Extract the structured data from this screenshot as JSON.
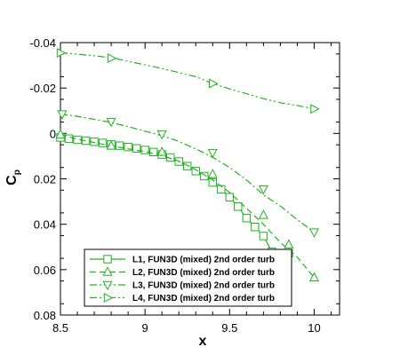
{
  "chart_data": {
    "type": "line",
    "xlabel": "x",
    "ylabel": "C",
    "ylabel_sub": "p",
    "xlim": [
      8.5,
      10.15
    ],
    "ylim": [
      0.08,
      -0.04
    ],
    "y_inverted": true,
    "xticks": [
      8.5,
      9,
      9.5,
      10
    ],
    "xtick_labels": [
      "8.5",
      "9",
      "9.5",
      "10"
    ],
    "yticks": [
      -0.04,
      -0.02,
      0,
      0.02,
      0.04,
      0.06,
      0.08
    ],
    "ytick_labels": [
      "-0.04",
      "-0.02",
      "0",
      "0.02",
      "0.04",
      "0.06",
      "0.08"
    ],
    "grid": false,
    "legend_position": "lower-left",
    "color": "#1eb31e",
    "series": [
      {
        "name": "L1, FUN3D (mixed) 2nd order turb",
        "marker": "square",
        "dash": "solid",
        "points": [
          [
            8.5,
            0.0018
          ],
          [
            8.55,
            0.0023
          ],
          [
            8.6,
            0.0028
          ],
          [
            8.65,
            0.0032
          ],
          [
            8.7,
            0.0037
          ],
          [
            8.75,
            0.0042
          ],
          [
            8.8,
            0.0048
          ],
          [
            8.85,
            0.0054
          ],
          [
            8.9,
            0.006
          ],
          [
            8.95,
            0.0066
          ],
          [
            9.0,
            0.0073
          ],
          [
            9.05,
            0.0082
          ],
          [
            9.1,
            0.0093
          ],
          [
            9.15,
            0.0106
          ],
          [
            9.2,
            0.0124
          ],
          [
            9.25,
            0.0144
          ],
          [
            9.3,
            0.0166
          ],
          [
            9.35,
            0.0188
          ],
          [
            9.4,
            0.0216
          ],
          [
            9.45,
            0.0246
          ],
          [
            9.5,
            0.0281
          ],
          [
            9.55,
            0.0322
          ],
          [
            9.6,
            0.0373
          ],
          [
            9.65,
            0.0412
          ],
          [
            9.7,
            0.0452
          ],
          [
            9.75,
            0.0521
          ],
          [
            9.8,
            0.0535
          ],
          [
            9.85,
            0.0528
          ]
        ],
        "markers": [
          [
            8.5,
            0.0018
          ],
          [
            8.55,
            0.0023
          ],
          [
            8.6,
            0.0028
          ],
          [
            8.65,
            0.0032
          ],
          [
            8.7,
            0.0037
          ],
          [
            8.75,
            0.0042
          ],
          [
            8.8,
            0.0048
          ],
          [
            8.85,
            0.0054
          ],
          [
            8.9,
            0.006
          ],
          [
            8.95,
            0.0066
          ],
          [
            9.0,
            0.0073
          ],
          [
            9.05,
            0.0082
          ],
          [
            9.1,
            0.0093
          ],
          [
            9.15,
            0.0106
          ],
          [
            9.2,
            0.0124
          ],
          [
            9.25,
            0.0144
          ],
          [
            9.3,
            0.0166
          ],
          [
            9.35,
            0.0188
          ],
          [
            9.4,
            0.0216
          ],
          [
            9.45,
            0.0246
          ],
          [
            9.5,
            0.0281
          ],
          [
            9.55,
            0.0322
          ],
          [
            9.6,
            0.0373
          ],
          [
            9.65,
            0.0412
          ],
          [
            9.7,
            0.0452
          ],
          [
            9.75,
            0.0521
          ],
          [
            9.8,
            0.0535
          ],
          [
            9.85,
            0.0528
          ]
        ]
      },
      {
        "name": "L2, FUN3D (mixed) 2nd order turb",
        "marker": "triangle-up",
        "dash": "dashed",
        "points": [
          [
            8.5,
            0.0005
          ],
          [
            8.6,
            0.0025
          ],
          [
            8.7,
            0.004
          ],
          [
            8.8,
            0.0055
          ],
          [
            8.9,
            0.0068
          ],
          [
            9.0,
            0.008
          ],
          [
            9.1,
            0.0098
          ],
          [
            9.2,
            0.0122
          ],
          [
            9.3,
            0.016
          ],
          [
            9.4,
            0.0205
          ],
          [
            9.5,
            0.026
          ],
          [
            9.6,
            0.033
          ],
          [
            9.7,
            0.04
          ],
          [
            9.8,
            0.048
          ],
          [
            9.9,
            0.0545
          ],
          [
            10.0,
            0.0635
          ]
        ],
        "markers": [
          [
            8.5,
            0.0005
          ],
          [
            8.8,
            0.0055
          ],
          [
            9.1,
            0.0082
          ],
          [
            9.4,
            0.018
          ],
          [
            9.7,
            0.036
          ],
          [
            9.85,
            0.049
          ],
          [
            10.0,
            0.0635
          ]
        ]
      },
      {
        "name": "L3, FUN3D (mixed) 2nd order turb",
        "marker": "triangle-down",
        "dash": "dashdot",
        "points": [
          [
            8.5,
            -0.0085
          ],
          [
            8.6,
            -0.0075
          ],
          [
            8.7,
            -0.0062
          ],
          [
            8.8,
            -0.0048
          ],
          [
            8.9,
            -0.003
          ],
          [
            9.0,
            -0.001
          ],
          [
            9.1,
            0.001
          ],
          [
            9.2,
            0.0035
          ],
          [
            9.3,
            0.0068
          ],
          [
            9.4,
            0.0105
          ],
          [
            9.5,
            0.015
          ],
          [
            9.6,
            0.0205
          ],
          [
            9.7,
            0.027
          ],
          [
            9.8,
            0.032
          ],
          [
            9.9,
            0.038
          ],
          [
            10.0,
            0.0435
          ]
        ],
        "markers": [
          [
            8.51,
            -0.0085
          ],
          [
            8.8,
            -0.0052
          ],
          [
            9.1,
            0.0003
          ],
          [
            9.4,
            0.0085
          ],
          [
            9.7,
            0.0245
          ],
          [
            10.0,
            0.0435
          ]
        ]
      },
      {
        "name": "L4, FUN3D (mixed) 2nd order turb",
        "marker": "triangle-right",
        "dash": "dashdotdot",
        "points": [
          [
            8.5,
            -0.0355
          ],
          [
            8.6,
            -0.0349
          ],
          [
            8.7,
            -0.0342
          ],
          [
            8.8,
            -0.0333
          ],
          [
            8.9,
            -0.0318
          ],
          [
            9.0,
            -0.0302
          ],
          [
            9.1,
            -0.0286
          ],
          [
            9.2,
            -0.0268
          ],
          [
            9.3,
            -0.025
          ],
          [
            9.4,
            -0.022
          ],
          [
            9.5,
            -0.0196
          ],
          [
            9.6,
            -0.0175
          ],
          [
            9.7,
            -0.0153
          ],
          [
            9.8,
            -0.0135
          ],
          [
            9.9,
            -0.0123
          ],
          [
            10.0,
            -0.0108
          ]
        ],
        "markers": [
          [
            8.5,
            -0.0355
          ],
          [
            8.8,
            -0.0331
          ],
          [
            9.4,
            -0.022
          ],
          [
            10.0,
            -0.0108
          ]
        ]
      }
    ]
  }
}
